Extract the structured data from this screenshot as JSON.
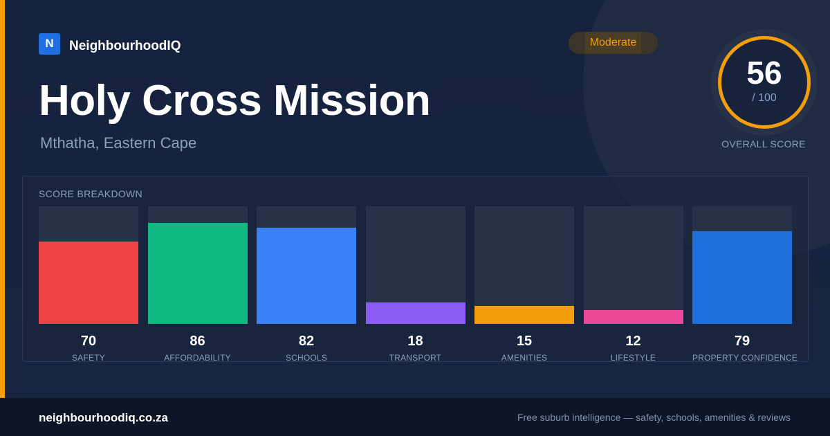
{
  "brand": {
    "logo_letter": "N",
    "name": "NeighbourhoodIQ"
  },
  "badge": {
    "label": "Moderate",
    "color": "#f59e0b"
  },
  "title": "Holy Cross Mission",
  "subtitle": "Mthatha, Eastern Cape",
  "overall": {
    "score": "56",
    "max": "/ 100",
    "label": "OVERALL SCORE",
    "fraction": 0.56
  },
  "breakdown": {
    "title": "SCORE BREAKDOWN",
    "items": [
      {
        "label": "SAFETY",
        "value": 70,
        "color": "#ef4444"
      },
      {
        "label": "AFFORDABILITY",
        "value": 86,
        "color": "#10b981"
      },
      {
        "label": "SCHOOLS",
        "value": 82,
        "color": "#3b82f6"
      },
      {
        "label": "TRANSPORT",
        "value": 18,
        "color": "#8b5cf6"
      },
      {
        "label": "AMENITIES",
        "value": 15,
        "color": "#f59e0b"
      },
      {
        "label": "LIFESTYLE",
        "value": 12,
        "color": "#ec4899"
      },
      {
        "label": "PROPERTY CONFIDENCE",
        "value": 79,
        "color": "#1d6fdc"
      }
    ]
  },
  "footer": {
    "site": "neighbourhoodiq.co.za",
    "tagline": "Free suburb intelligence — safety, schools, amenities & reviews"
  }
}
